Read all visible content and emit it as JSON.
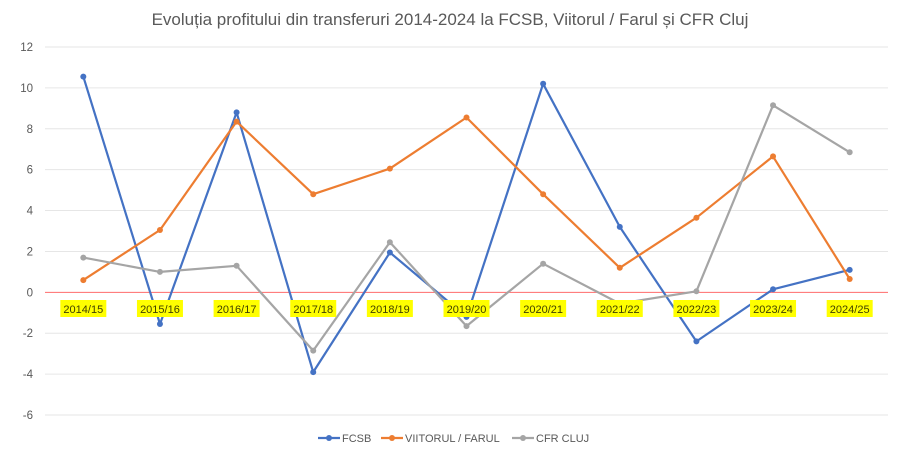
{
  "chart_data": {
    "type": "line",
    "title": "Evoluția profitului din transferuri 2014-2024 la FCSB, Viitorul / Farul și CFR Cluj",
    "xlabel": "",
    "ylabel": "",
    "categories": [
      "2014/15",
      "2015/16",
      "2016/17",
      "2017/18",
      "2018/19",
      "2019/20",
      "2020/21",
      "2021/22",
      "2022/23",
      "2023/24",
      "2024/25"
    ],
    "ylim": [
      -6,
      12
    ],
    "yticks": [
      12,
      10,
      8,
      6,
      4,
      2,
      0,
      -2,
      -4,
      -6
    ],
    "grid": true,
    "legend_position": "bottom",
    "series": [
      {
        "name": "FCSB",
        "color": "#4472C4",
        "values": [
          10.55,
          -1.55,
          8.8,
          -3.9,
          1.95,
          -1.2,
          10.2,
          3.2,
          -2.4,
          0.15,
          1.1
        ]
      },
      {
        "name": "VIITORUL / FARUL",
        "color": "#ED7D31",
        "values": [
          0.6,
          3.05,
          8.35,
          4.8,
          6.05,
          8.55,
          4.8,
          1.2,
          3.65,
          6.65,
          0.65
        ]
      },
      {
        "name": "CFR CLUJ",
        "color": "#A5A5A5",
        "values": [
          1.7,
          1.0,
          1.3,
          -2.85,
          2.45,
          -1.65,
          1.4,
          -0.55,
          0.05,
          9.15,
          6.85
        ]
      }
    ],
    "colors": {
      "zero_line": "#FF6B6B",
      "gridline": "#E6E6E6",
      "category_label_highlight": "#FFFF00"
    }
  }
}
